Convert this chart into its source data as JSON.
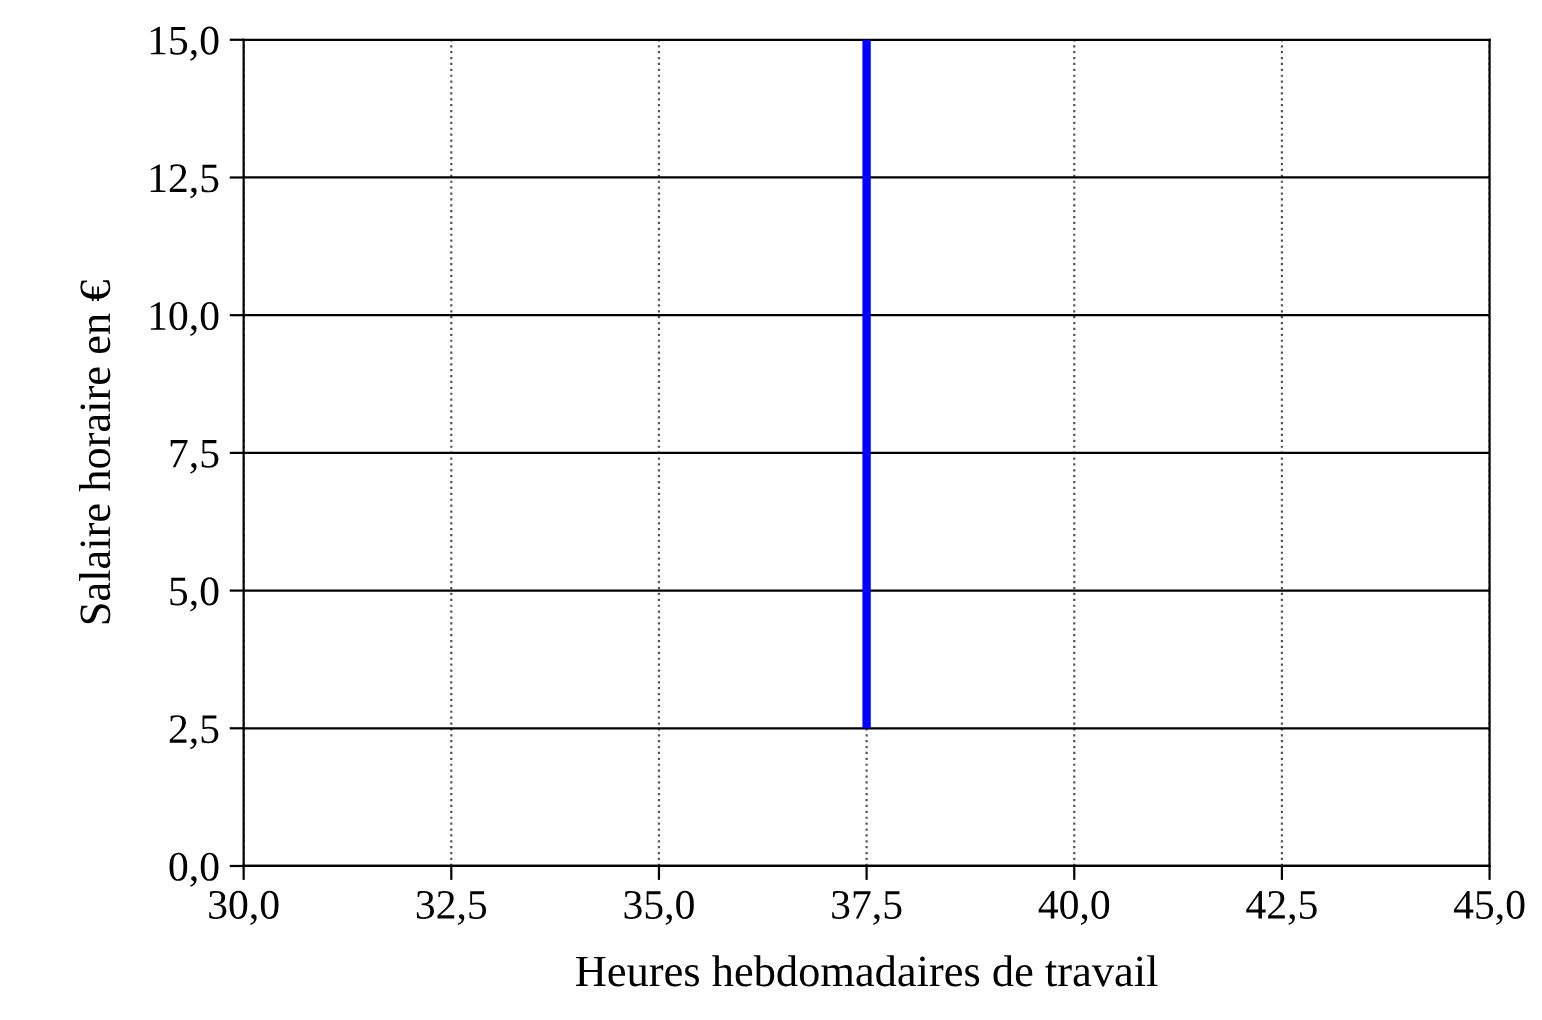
{
  "chart_data": {
    "type": "line",
    "xlabel": "Heures hebdomadaires de travail",
    "ylabel": "Salaire horaire en €",
    "series": [
      {
        "color": "#0000ff",
        "x": [
          37.5,
          37.5
        ],
        "values": [
          2.5,
          15.0
        ]
      }
    ],
    "xlim": [
      30,
      45
    ],
    "ylim": [
      0,
      15
    ],
    "xticks": [
      {
        "value": 30,
        "label": "30,0"
      },
      {
        "value": 32.5,
        "label": "32,5"
      },
      {
        "value": 35,
        "label": "35,0"
      },
      {
        "value": 37.5,
        "label": "37,5"
      },
      {
        "value": 40,
        "label": "40,0"
      },
      {
        "value": 42.5,
        "label": "42,5"
      },
      {
        "value": 45,
        "label": "45,0"
      }
    ],
    "yticks": [
      {
        "value": 0,
        "label": "0,0"
      },
      {
        "value": 2.5,
        "label": "2,5"
      },
      {
        "value": 5,
        "label": "5,0"
      },
      {
        "value": 7.5,
        "label": "7,5"
      },
      {
        "value": 10,
        "label": "10,0"
      },
      {
        "value": 12.5,
        "label": "12,5"
      },
      {
        "value": 15,
        "label": "15,0"
      }
    ],
    "grid": true,
    "marker": "none",
    "line_style": "solid"
  }
}
